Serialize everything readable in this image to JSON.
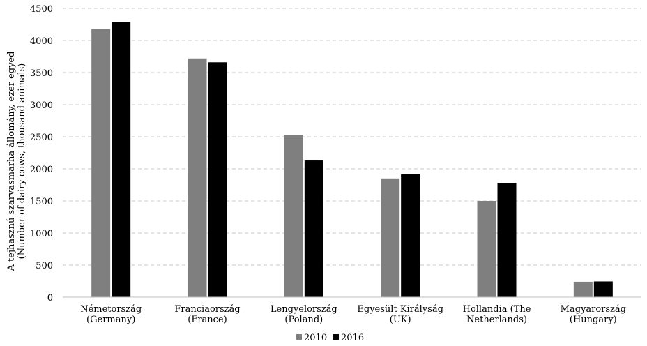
{
  "chart_data": {
    "type": "bar",
    "title": "",
    "xlabel": "",
    "ylabel_lines": [
      "A tejhasznú szarvasmarha állomány, ezer egyed",
      "(Number of dairy cows, thousand animals)"
    ],
    "categories": [
      [
        "Németország",
        "(Germany)"
      ],
      [
        "Franciaország",
        "(France)"
      ],
      [
        "Lengyelország",
        "(Poland)"
      ],
      [
        "Egyesült Királyság",
        "(UK)"
      ],
      [
        "Hollandia (The",
        "Netherlands)"
      ],
      [
        "Magyarország",
        "(Hungary)"
      ]
    ],
    "series": [
      {
        "name": "2010",
        "color": "#7f7f7f",
        "values": [
          4180,
          3720,
          2530,
          1850,
          1500,
          240
        ]
      },
      {
        "name": "2016",
        "color": "#000000",
        "values": [
          4285,
          3660,
          2130,
          1915,
          1780,
          245
        ]
      }
    ],
    "ylim": [
      0,
      4500
    ],
    "yticks": [
      0,
      500,
      1000,
      1500,
      2000,
      2500,
      3000,
      3500,
      4000,
      4500
    ],
    "grid": true,
    "legend": "bottom-center"
  }
}
